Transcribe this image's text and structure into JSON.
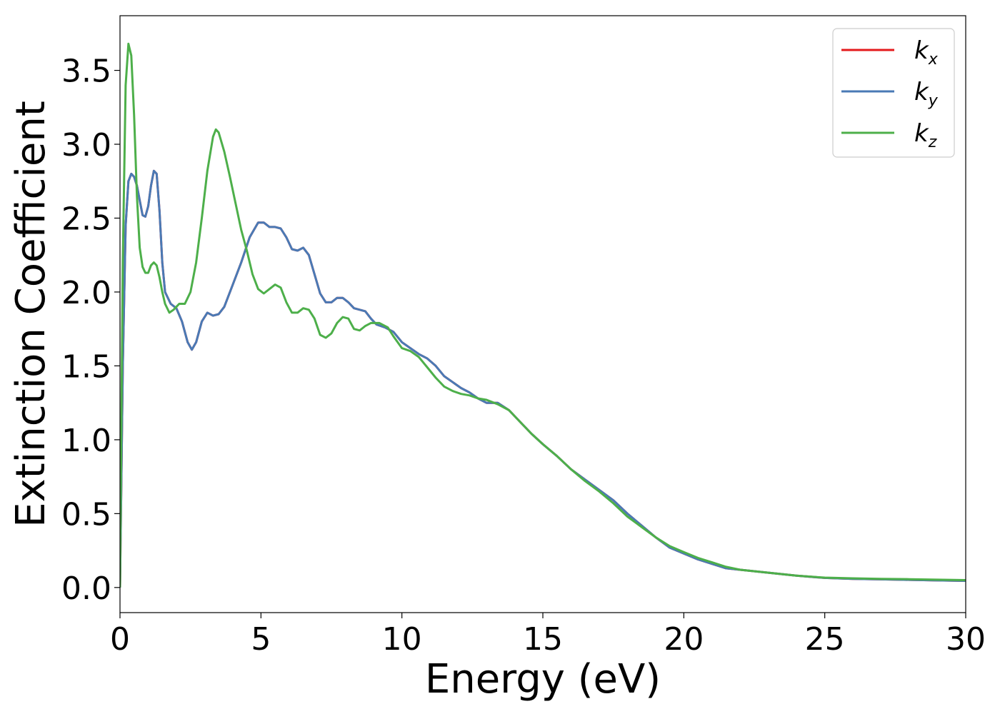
{
  "chart_data": {
    "type": "line",
    "title": "",
    "xlabel": "Energy (eV)",
    "ylabel": "Extinction Coefficient",
    "xlim": [
      0,
      30
    ],
    "ylim": [
      -0.17,
      3.87
    ],
    "xticks": [
      0,
      5,
      10,
      15,
      20,
      25,
      30
    ],
    "yticks": [
      0.0,
      0.5,
      1.0,
      1.5,
      2.0,
      2.5,
      3.0,
      3.5
    ],
    "grid": false,
    "legend_position": "top-right",
    "series": [
      {
        "name": "k",
        "subscript": "x",
        "color": "#e41a1c",
        "points": [
          [
            0,
            0.0
          ],
          [
            0.1,
            1.5
          ],
          [
            0.2,
            2.45
          ],
          [
            0.3,
            2.75
          ],
          [
            0.4,
            2.8
          ],
          [
            0.5,
            2.78
          ],
          [
            0.6,
            2.72
          ],
          [
            0.7,
            2.62
          ],
          [
            0.8,
            2.52
          ],
          [
            0.9,
            2.51
          ],
          [
            1.0,
            2.58
          ],
          [
            1.1,
            2.72
          ],
          [
            1.2,
            2.82
          ],
          [
            1.3,
            2.8
          ],
          [
            1.4,
            2.55
          ],
          [
            1.5,
            2.2
          ],
          [
            1.6,
            2.0
          ],
          [
            1.8,
            1.92
          ],
          [
            2.0,
            1.89
          ],
          [
            2.2,
            1.8
          ],
          [
            2.4,
            1.66
          ],
          [
            2.55,
            1.61
          ],
          [
            2.7,
            1.66
          ],
          [
            2.9,
            1.8
          ],
          [
            3.1,
            1.86
          ],
          [
            3.3,
            1.84
          ],
          [
            3.5,
            1.85
          ],
          [
            3.7,
            1.9
          ],
          [
            4.0,
            2.05
          ],
          [
            4.3,
            2.2
          ],
          [
            4.6,
            2.37
          ],
          [
            4.9,
            2.47
          ],
          [
            5.1,
            2.47
          ],
          [
            5.3,
            2.44
          ],
          [
            5.5,
            2.44
          ],
          [
            5.7,
            2.43
          ],
          [
            5.9,
            2.37
          ],
          [
            6.1,
            2.29
          ],
          [
            6.3,
            2.28
          ],
          [
            6.5,
            2.3
          ],
          [
            6.7,
            2.25
          ],
          [
            6.9,
            2.12
          ],
          [
            7.1,
            1.99
          ],
          [
            7.3,
            1.93
          ],
          [
            7.5,
            1.93
          ],
          [
            7.7,
            1.96
          ],
          [
            7.9,
            1.96
          ],
          [
            8.1,
            1.93
          ],
          [
            8.3,
            1.89
          ],
          [
            8.5,
            1.88
          ],
          [
            8.7,
            1.87
          ],
          [
            8.9,
            1.82
          ],
          [
            9.1,
            1.78
          ],
          [
            9.4,
            1.76
          ],
          [
            9.7,
            1.73
          ],
          [
            10.0,
            1.66
          ],
          [
            10.3,
            1.62
          ],
          [
            10.6,
            1.58
          ],
          [
            10.9,
            1.55
          ],
          [
            11.2,
            1.5
          ],
          [
            11.5,
            1.43
          ],
          [
            11.8,
            1.39
          ],
          [
            12.1,
            1.35
          ],
          [
            12.4,
            1.32
          ],
          [
            12.7,
            1.28
          ],
          [
            13.0,
            1.25
          ],
          [
            13.4,
            1.25
          ],
          [
            13.8,
            1.2
          ],
          [
            14.2,
            1.12
          ],
          [
            14.6,
            1.04
          ],
          [
            15.0,
            0.97
          ],
          [
            15.5,
            0.89
          ],
          [
            16.0,
            0.8
          ],
          [
            16.5,
            0.73
          ],
          [
            17.0,
            0.66
          ],
          [
            17.5,
            0.59
          ],
          [
            18.0,
            0.5
          ],
          [
            18.5,
            0.42
          ],
          [
            19.0,
            0.34
          ],
          [
            19.5,
            0.27
          ],
          [
            20.0,
            0.23
          ],
          [
            20.5,
            0.19
          ],
          [
            21.0,
            0.16
          ],
          [
            21.5,
            0.13
          ],
          [
            22.0,
            0.12
          ],
          [
            23.0,
            0.1
          ],
          [
            24.0,
            0.08
          ],
          [
            25.0,
            0.065
          ],
          [
            26.0,
            0.058
          ],
          [
            27.0,
            0.055
          ],
          [
            28.0,
            0.052
          ],
          [
            29.0,
            0.048
          ],
          [
            30.0,
            0.045
          ]
        ]
      },
      {
        "name": "k",
        "subscript": "y",
        "color": "#4a7ab5",
        "points": [
          [
            0,
            0.0
          ],
          [
            0.1,
            1.5
          ],
          [
            0.2,
            2.45
          ],
          [
            0.3,
            2.75
          ],
          [
            0.4,
            2.8
          ],
          [
            0.5,
            2.78
          ],
          [
            0.6,
            2.72
          ],
          [
            0.7,
            2.62
          ],
          [
            0.8,
            2.52
          ],
          [
            0.9,
            2.51
          ],
          [
            1.0,
            2.58
          ],
          [
            1.1,
            2.72
          ],
          [
            1.2,
            2.82
          ],
          [
            1.3,
            2.8
          ],
          [
            1.4,
            2.55
          ],
          [
            1.5,
            2.2
          ],
          [
            1.6,
            2.0
          ],
          [
            1.8,
            1.92
          ],
          [
            2.0,
            1.89
          ],
          [
            2.2,
            1.8
          ],
          [
            2.4,
            1.66
          ],
          [
            2.55,
            1.61
          ],
          [
            2.7,
            1.66
          ],
          [
            2.9,
            1.8
          ],
          [
            3.1,
            1.86
          ],
          [
            3.3,
            1.84
          ],
          [
            3.5,
            1.85
          ],
          [
            3.7,
            1.9
          ],
          [
            4.0,
            2.05
          ],
          [
            4.3,
            2.2
          ],
          [
            4.6,
            2.37
          ],
          [
            4.9,
            2.47
          ],
          [
            5.1,
            2.47
          ],
          [
            5.3,
            2.44
          ],
          [
            5.5,
            2.44
          ],
          [
            5.7,
            2.43
          ],
          [
            5.9,
            2.37
          ],
          [
            6.1,
            2.29
          ],
          [
            6.3,
            2.28
          ],
          [
            6.5,
            2.3
          ],
          [
            6.7,
            2.25
          ],
          [
            6.9,
            2.12
          ],
          [
            7.1,
            1.99
          ],
          [
            7.3,
            1.93
          ],
          [
            7.5,
            1.93
          ],
          [
            7.7,
            1.96
          ],
          [
            7.9,
            1.96
          ],
          [
            8.1,
            1.93
          ],
          [
            8.3,
            1.89
          ],
          [
            8.5,
            1.88
          ],
          [
            8.7,
            1.87
          ],
          [
            8.9,
            1.82
          ],
          [
            9.1,
            1.78
          ],
          [
            9.4,
            1.76
          ],
          [
            9.7,
            1.73
          ],
          [
            10.0,
            1.66
          ],
          [
            10.3,
            1.62
          ],
          [
            10.6,
            1.58
          ],
          [
            10.9,
            1.55
          ],
          [
            11.2,
            1.5
          ],
          [
            11.5,
            1.43
          ],
          [
            11.8,
            1.39
          ],
          [
            12.1,
            1.35
          ],
          [
            12.4,
            1.32
          ],
          [
            12.7,
            1.28
          ],
          [
            13.0,
            1.25
          ],
          [
            13.4,
            1.25
          ],
          [
            13.8,
            1.2
          ],
          [
            14.2,
            1.12
          ],
          [
            14.6,
            1.04
          ],
          [
            15.0,
            0.97
          ],
          [
            15.5,
            0.89
          ],
          [
            16.0,
            0.8
          ],
          [
            16.5,
            0.73
          ],
          [
            17.0,
            0.66
          ],
          [
            17.5,
            0.59
          ],
          [
            18.0,
            0.5
          ],
          [
            18.5,
            0.42
          ],
          [
            19.0,
            0.34
          ],
          [
            19.5,
            0.27
          ],
          [
            20.0,
            0.23
          ],
          [
            20.5,
            0.19
          ],
          [
            21.0,
            0.16
          ],
          [
            21.5,
            0.13
          ],
          [
            22.0,
            0.12
          ],
          [
            23.0,
            0.1
          ],
          [
            24.0,
            0.08
          ],
          [
            25.0,
            0.065
          ],
          [
            26.0,
            0.058
          ],
          [
            27.0,
            0.055
          ],
          [
            28.0,
            0.052
          ],
          [
            29.0,
            0.048
          ],
          [
            30.0,
            0.045
          ]
        ]
      },
      {
        "name": "k",
        "subscript": "z",
        "color": "#4daf4a",
        "points": [
          [
            0,
            0.0
          ],
          [
            0.1,
            2.2
          ],
          [
            0.2,
            3.4
          ],
          [
            0.3,
            3.68
          ],
          [
            0.4,
            3.6
          ],
          [
            0.5,
            3.2
          ],
          [
            0.6,
            2.65
          ],
          [
            0.7,
            2.3
          ],
          [
            0.8,
            2.17
          ],
          [
            0.9,
            2.13
          ],
          [
            1.0,
            2.13
          ],
          [
            1.1,
            2.18
          ],
          [
            1.2,
            2.2
          ],
          [
            1.3,
            2.18
          ],
          [
            1.4,
            2.1
          ],
          [
            1.5,
            2.0
          ],
          [
            1.6,
            1.92
          ],
          [
            1.75,
            1.86
          ],
          [
            1.9,
            1.88
          ],
          [
            2.1,
            1.92
          ],
          [
            2.3,
            1.92
          ],
          [
            2.5,
            2.0
          ],
          [
            2.7,
            2.2
          ],
          [
            2.9,
            2.5
          ],
          [
            3.1,
            2.82
          ],
          [
            3.3,
            3.05
          ],
          [
            3.4,
            3.1
          ],
          [
            3.5,
            3.08
          ],
          [
            3.7,
            2.95
          ],
          [
            3.9,
            2.78
          ],
          [
            4.1,
            2.6
          ],
          [
            4.3,
            2.42
          ],
          [
            4.5,
            2.28
          ],
          [
            4.7,
            2.12
          ],
          [
            4.9,
            2.02
          ],
          [
            5.1,
            1.99
          ],
          [
            5.3,
            2.02
          ],
          [
            5.5,
            2.05
          ],
          [
            5.7,
            2.03
          ],
          [
            5.9,
            1.93
          ],
          [
            6.1,
            1.86
          ],
          [
            6.3,
            1.86
          ],
          [
            6.5,
            1.89
          ],
          [
            6.7,
            1.88
          ],
          [
            6.9,
            1.82
          ],
          [
            7.1,
            1.71
          ],
          [
            7.3,
            1.69
          ],
          [
            7.5,
            1.72
          ],
          [
            7.7,
            1.79
          ],
          [
            7.9,
            1.83
          ],
          [
            8.1,
            1.82
          ],
          [
            8.3,
            1.75
          ],
          [
            8.5,
            1.74
          ],
          [
            8.7,
            1.77
          ],
          [
            8.9,
            1.79
          ],
          [
            9.2,
            1.79
          ],
          [
            9.5,
            1.76
          ],
          [
            9.7,
            1.7
          ],
          [
            10.0,
            1.62
          ],
          [
            10.3,
            1.6
          ],
          [
            10.6,
            1.56
          ],
          [
            10.9,
            1.49
          ],
          [
            11.2,
            1.42
          ],
          [
            11.5,
            1.36
          ],
          [
            11.8,
            1.33
          ],
          [
            12.1,
            1.31
          ],
          [
            12.4,
            1.3
          ],
          [
            12.7,
            1.28
          ],
          [
            13.0,
            1.27
          ],
          [
            13.4,
            1.24
          ],
          [
            13.8,
            1.2
          ],
          [
            14.2,
            1.12
          ],
          [
            14.6,
            1.04
          ],
          [
            15.0,
            0.97
          ],
          [
            15.5,
            0.89
          ],
          [
            16.0,
            0.8
          ],
          [
            16.5,
            0.72
          ],
          [
            17.0,
            0.65
          ],
          [
            17.5,
            0.57
          ],
          [
            18.0,
            0.48
          ],
          [
            18.5,
            0.41
          ],
          [
            19.0,
            0.34
          ],
          [
            19.5,
            0.28
          ],
          [
            20.0,
            0.24
          ],
          [
            20.5,
            0.2
          ],
          [
            21.0,
            0.17
          ],
          [
            21.5,
            0.14
          ],
          [
            22.0,
            0.12
          ],
          [
            23.0,
            0.1
          ],
          [
            24.0,
            0.08
          ],
          [
            25.0,
            0.067
          ],
          [
            26.0,
            0.062
          ],
          [
            27.0,
            0.058
          ],
          [
            28.0,
            0.056
          ],
          [
            29.0,
            0.053
          ],
          [
            30.0,
            0.05
          ]
        ]
      }
    ]
  }
}
